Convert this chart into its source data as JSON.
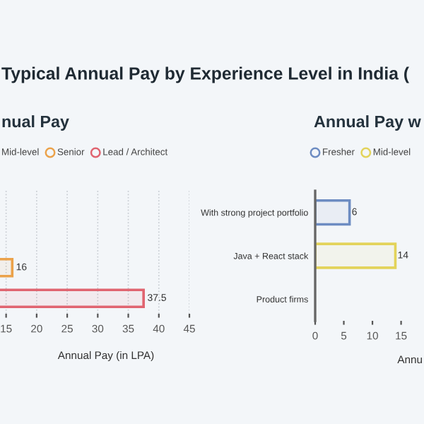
{
  "chart_data": [
    {
      "type": "bar",
      "orientation": "horizontal",
      "title": "Typical Annual Pay by Experience Level in India (",
      "subtitle": "nual Pay",
      "xlabel": "Annual Pay (in LPA)",
      "categories": [
        null,
        null,
        null,
        null
      ],
      "series": [
        {
          "name": "Mid-level",
          "values": [
            null,
            null,
            null,
            null
          ]
        },
        {
          "name": "Senior",
          "color": "#eba24a",
          "values": [
            null,
            null,
            16,
            null
          ]
        },
        {
          "name": "Lead / Architect",
          "color": "#e06470",
          "values": [
            null,
            null,
            null,
            37.5
          ]
        }
      ],
      "xlim": [
        14,
        45
      ],
      "xticks": [
        15,
        20,
        25,
        30,
        35,
        40,
        45
      ],
      "data_labels": true,
      "grid": "x",
      "legend": "top",
      "tick_labels": "x"
    },
    {
      "type": "bar",
      "orientation": "horizontal",
      "subtitle": "Annual Pay w",
      "xlabel": "Annu",
      "categories": [
        "With strong project portfolio",
        "Java + React stack",
        "Product firms"
      ],
      "series": [
        {
          "name": "Fresher",
          "color": "#6d8cc2",
          "values": [
            6,
            null,
            null
          ]
        },
        {
          "name": "Mid-level",
          "color": "#e3d35a",
          "values": [
            null,
            14,
            null
          ]
        }
      ],
      "xlim": [
        0,
        19
      ],
      "xticks": [
        0,
        5,
        10,
        15
      ],
      "data_labels": true,
      "legend": "top"
    }
  ]
}
